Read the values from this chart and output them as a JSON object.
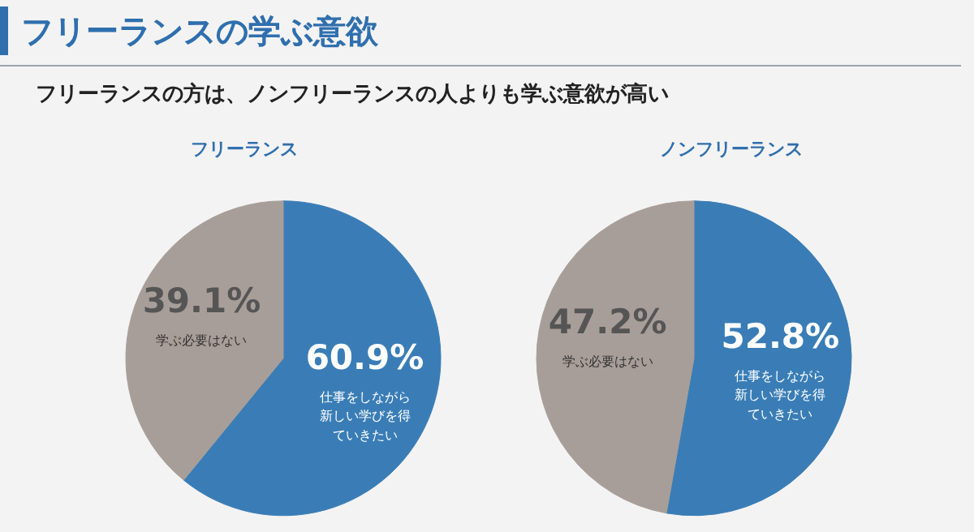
{
  "chart_data": [
    {
      "type": "other",
      "title": "フリーランスの学ぶ意欲",
      "subtitle": "フリーランスの方は、ノンフリーランスの人よりも学ぶ意欲が高い"
    },
    {
      "type": "pie",
      "title": "フリーランス",
      "categories": [
        "仕事をしながら新しい学びを得ていきたい",
        "学ぶ必要はない"
      ],
      "values": [
        60.9,
        39.1
      ],
      "colors": [
        "#3a7db6",
        "#a89e99"
      ],
      "value_labels": [
        "60.9%",
        "39.1%"
      ]
    },
    {
      "type": "pie",
      "title": "ノンフリーランス",
      "categories": [
        "仕事をしながら新しい学びを得ていきたい",
        "学ぶ必要はない"
      ],
      "values": [
        52.8,
        47.2
      ],
      "colors": [
        "#3a7db6",
        "#a89e99"
      ],
      "value_labels": [
        "52.8%",
        "47.2%"
      ]
    }
  ]
}
